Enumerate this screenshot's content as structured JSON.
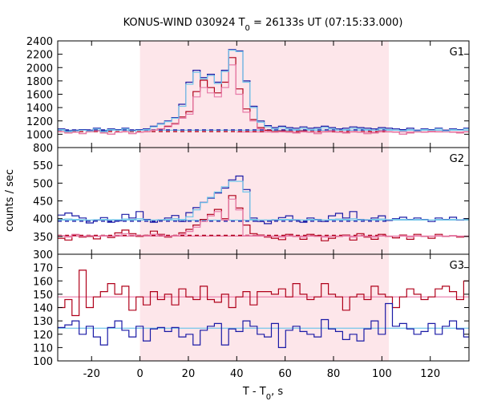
{
  "title": "KONUS-WIND 030924 T",
  "title_sub": "0",
  "title_rest": " = 26133s UT (07:15:33.000)",
  "colors": {
    "shade": "#fde6ea",
    "dark_red": "#b0001a",
    "pink": "#e87aa8",
    "dark_blue": "#1a1aa6",
    "light_blue": "#74c6ea",
    "frame": "#000000"
  },
  "chart_data": {
    "type": "line",
    "xlabel_main": "T - T",
    "xlabel_sub": "0",
    "xlabel_tail": ", s",
    "ylabel": "counts / sec",
    "xlim": [
      -34,
      136
    ],
    "x_ticks": [
      -20,
      0,
      20,
      40,
      60,
      80,
      100,
      120
    ],
    "x_tick_labels": [
      "-20",
      "0",
      "20",
      "40",
      "60",
      "80",
      "100",
      "120"
    ],
    "shaded_interval": [
      0,
      102.9
    ],
    "bin_width": 2.944,
    "panels": [
      {
        "label": "G1",
        "ylim": [
          800,
          2400
        ],
        "y_ticks": [
          800,
          1000,
          1200,
          1400,
          1600,
          1800,
          2000,
          2200,
          2400
        ],
        "y_tick_labels": [
          "800",
          "1000",
          "1200",
          "1400",
          "1600",
          "1800",
          "2000",
          "2200",
          "2400"
        ],
        "background_levels": [
          {
            "name": "background-red",
            "value": 1040,
            "x_end": 102.9
          },
          {
            "name": "background-blue",
            "value": 1065,
            "x_end": 102.9
          }
        ],
        "fit_levels": [
          {
            "name": "fit-light-blue",
            "value": 1060,
            "x_start": -34,
            "x_end": 136
          },
          {
            "name": "fit-pink",
            "value": 1035,
            "x_start": 40,
            "x_end": 136
          }
        ],
        "series": [
          {
            "name": "red-series",
            "values": [
              1040,
              1020,
              1030,
              1010,
              1040,
              1050,
              1020,
              1000,
              1030,
              1040,
              1010,
              1030,
              1040,
              1060,
              1080,
              1120,
              1160,
              1260,
              1340,
              1640,
              1810,
              1700,
              1620,
              1780,
              2150,
              1680,
              1380,
              1220,
              1100,
              1060,
              1040,
              1050,
              1040,
              1020,
              1050,
              1030,
              1010,
              1040,
              1050,
              1030,
              1020,
              1040,
              1030,
              1010,
              1020,
              1050,
              1040,
              1030,
              1000,
              1020,
              1040,
              1030,
              1050,
              1040,
              1060,
              1030,
              1020,
              1040
            ]
          },
          {
            "name": "pink-series",
            "values": [
              1040,
              1020,
              1030,
              1010,
              1040,
              1050,
              1020,
              1000,
              1030,
              1040,
              1010,
              1030,
              1040,
              1060,
              1080,
              1110,
              1150,
              1240,
              1300,
              1560,
              1700,
              1620,
              1560,
              1700,
              2040,
              1600,
              1330,
              1200,
              1080,
              1040,
              1030,
              1040,
              1030,
              1020,
              1040,
              1030,
              1010,
              1040,
              1050,
              1030,
              1020,
              1040,
              1030,
              1010,
              1020,
              1050,
              1040,
              1030,
              1000,
              1020,
              1040,
              1030,
              1050,
              1040,
              1060,
              1030,
              1020,
              1040
            ]
          },
          {
            "name": "blue-series",
            "values": [
              1080,
              1050,
              1060,
              1070,
              1060,
              1090,
              1050,
              1080,
              1070,
              1090,
              1060,
              1070,
              1080,
              1120,
              1160,
              1200,
              1250,
              1450,
              1780,
              1960,
              1850,
              1900,
              1780,
              1960,
              2270,
              2250,
              1800,
              1420,
              1200,
              1130,
              1100,
              1120,
              1100,
              1090,
              1110,
              1090,
              1100,
              1120,
              1100,
              1080,
              1090,
              1110,
              1100,
              1090,
              1080,
              1100,
              1090,
              1080,
              1070,
              1090,
              1060,
              1080,
              1070,
              1090,
              1060,
              1080,
              1070,
              1090
            ]
          },
          {
            "name": "light-blue-series",
            "values": [
              1070,
              1040,
              1050,
              1060,
              1050,
              1080,
              1040,
              1070,
              1060,
              1080,
              1050,
              1060,
              1070,
              1110,
              1150,
              1190,
              1240,
              1420,
              1750,
              1930,
              1830,
              1880,
              1760,
              1940,
              2260,
              2240,
              1780,
              1400,
              1180,
              1110,
              1080,
              1100,
              1080,
              1070,
              1090,
              1070,
              1080,
              1100,
              1080,
              1060,
              1070,
              1090,
              1080,
              1070,
              1060,
              1080,
              1070,
              1060,
              1050,
              1070,
              1050,
              1070,
              1060,
              1080,
              1050,
              1070,
              1060,
              1080
            ]
          }
        ]
      },
      {
        "label": "G2",
        "ylim": [
          300,
          600
        ],
        "y_ticks": [
          300,
          350,
          400,
          450,
          500,
          550
        ],
        "y_tick_labels": [
          "300",
          "350",
          "400",
          "450",
          "500",
          "550"
        ],
        "background_levels": [
          {
            "name": "background-red",
            "value": 353,
            "x_end": 102.9
          },
          {
            "name": "background-blue",
            "value": 393,
            "x_end": 102.9
          }
        ],
        "fit_levels": [
          {
            "name": "fit-light-blue",
            "value": 396,
            "x_start": -34,
            "x_end": 136
          },
          {
            "name": "fit-pink",
            "value": 351,
            "x_start": -34,
            "x_end": 136
          }
        ],
        "series": [
          {
            "name": "red-series",
            "values": [
              345,
              340,
              355,
              348,
              350,
              343,
              352,
              347,
              360,
              368,
              358,
              350,
              353,
              365,
              356,
              348,
              352,
              360,
              370,
              382,
              398,
              412,
              426,
              400,
              465,
              430,
              382,
              358,
              354,
              348,
              345,
              341,
              356,
              350,
              342,
              356,
              352,
              338,
              345,
              350,
              354,
              340,
              358,
              348,
              342,
              356,
              350,
              346,
              354,
              342,
              356,
              350,
              345,
              356,
              350,
              352,
              348,
              350
            ]
          },
          {
            "name": "pink-series",
            "values": [
              352,
              348,
              356,
              350,
              352,
              350,
              352,
              350,
              354,
              358,
              354,
              352,
              352,
              356,
              354,
              350,
              352,
              356,
              364,
              376,
              392,
              408,
              420,
              396,
              455,
              425,
              352,
              352,
              352,
              350,
              350,
              348,
              352,
              350,
              348,
              352,
              350,
              348,
              350,
              350,
              352,
              348,
              352,
              350,
              348,
              352,
              350,
              350,
              352,
              348,
              352,
              350,
              350,
              352,
              350,
              352,
              350,
              350
            ]
          },
          {
            "name": "blue-series",
            "values": [
              410,
              416,
              408,
              402,
              388,
              396,
              403,
              390,
              394,
              412,
              402,
              420,
              398,
              390,
              396,
              402,
              409,
              392,
              417,
              431,
              446,
              458,
              472,
              486,
              509,
              520,
              482,
              402,
              392,
              386,
              396,
              403,
              408,
              396,
              390,
              402,
              398,
              392,
              408,
              415,
              402,
              420,
              398,
              396,
              402,
              408,
              395,
              400,
              404,
              398,
              402,
              398,
              392,
              402,
              398,
              404,
              396,
              400
            ]
          },
          {
            "name": "light-blue-series",
            "values": [
              398,
              399,
              398,
              397,
              396,
              397,
              398,
              397,
              397,
              399,
              398,
              400,
              396,
              396,
              397,
              398,
              400,
              398,
              405,
              425,
              445,
              460,
              475,
              490,
              505,
              505,
              475,
              398,
              396,
              396,
              397,
              398,
              398,
              397,
              396,
              398,
              397,
              396,
              398,
              399,
              398,
              400,
              397,
              397,
              398,
              399,
              397,
              398,
              398,
              397,
              398,
              397,
              396,
              398,
              397,
              398,
              397,
              398
            ]
          }
        ]
      },
      {
        "label": "G3",
        "ylim": [
          100,
          180
        ],
        "y_ticks": [
          100,
          110,
          120,
          130,
          140,
          150,
          160,
          170
        ],
        "y_tick_labels": [
          "100",
          "110",
          "120",
          "130",
          "140",
          "150",
          "160",
          "170"
        ],
        "background_levels": [],
        "fit_levels": [
          {
            "name": "fit-light-blue",
            "value": 124.5,
            "x_start": -34,
            "x_end": 136
          },
          {
            "name": "fit-pink",
            "value": 148,
            "x_start": -34,
            "x_end": 136
          }
        ],
        "series": [
          {
            "name": "red-series",
            "values": [
              140,
              146,
              134,
              168,
              140,
              148,
              152,
              158,
              150,
              156,
              138,
              148,
              142,
              152,
              146,
              150,
              142,
              154,
              148,
              146,
              156,
              146,
              144,
              150,
              140,
              148,
              152,
              142,
              152,
              152,
              150,
              154,
              148,
              158,
              150,
              146,
              148,
              158,
              150,
              148,
              138,
              148,
              150,
              146,
              156,
              150,
              148,
              140,
              148,
              154,
              150,
              146,
              148,
              154,
              156,
              152,
              146,
              160
            ]
          },
          {
            "name": "blue-series",
            "values": [
              125,
              127,
              130,
              120,
              126,
              118,
              112,
              125,
              130,
              123,
              118,
              126,
              115,
              124,
              125,
              122,
              125,
              118,
              120,
              112,
              123,
              126,
              128,
              112,
              124,
              122,
              130,
              126,
              120,
              118,
              128,
              110,
              123,
              126,
              122,
              120,
              118,
              131,
              124,
              122,
              116,
              120,
              115,
              124,
              130,
              120,
              143,
              126,
              128,
              124,
              120,
              122,
              128,
              120,
              126,
              130,
              124,
              118
            ]
          }
        ]
      }
    ]
  }
}
